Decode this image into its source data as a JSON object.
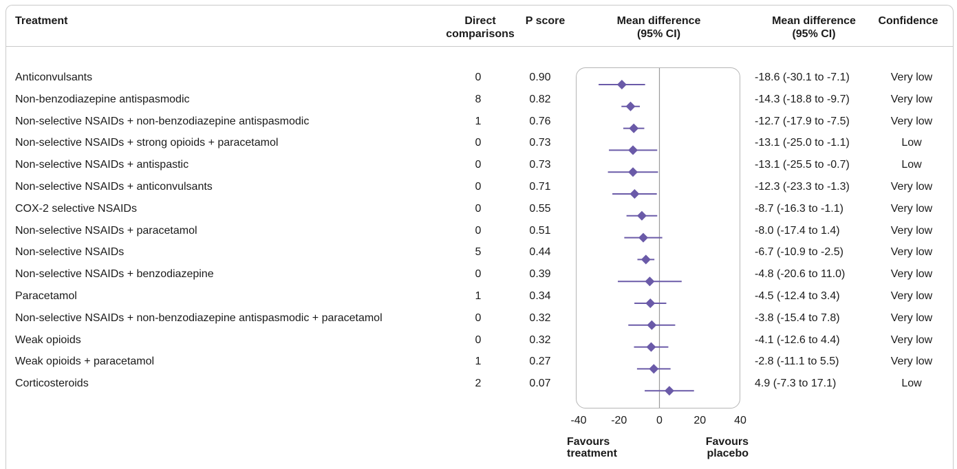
{
  "headers": {
    "treatment": "Treatment",
    "direct_1": "Direct",
    "direct_2": "comparisons",
    "pscore": "P score",
    "md_plot_1": "Mean difference",
    "md_plot_2": "(95% CI)",
    "md_text_1": "Mean difference",
    "md_text_2": "(95% CI)",
    "confidence": "Confidence"
  },
  "rows": [
    {
      "treatment": "Anticonvulsants",
      "direct": "0",
      "pscore": "0.90",
      "ci_text": "-18.6 (-30.1 to -7.1)",
      "confidence": "Very low"
    },
    {
      "treatment": "Non-benzodiazepine antispasmodic",
      "direct": "8",
      "pscore": "0.82",
      "ci_text": "-14.3 (-18.8 to -9.7)",
      "confidence": "Very low"
    },
    {
      "treatment": "Non-selective NSAIDs + non-benzodiazepine antispasmodic",
      "direct": "1",
      "pscore": "0.76",
      "ci_text": "-12.7 (-17.9 to -7.5)",
      "confidence": "Very low"
    },
    {
      "treatment": "Non-selective NSAIDs + strong opioids + paracetamol",
      "direct": "0",
      "pscore": "0.73",
      "ci_text": "-13.1 (-25.0 to -1.1)",
      "confidence": "Low"
    },
    {
      "treatment": "Non-selective NSAIDs + antispastic",
      "direct": "0",
      "pscore": "0.73",
      "ci_text": "-13.1 (-25.5 to -0.7)",
      "confidence": "Low"
    },
    {
      "treatment": "Non-selective NSAIDs + anticonvulsants",
      "direct": "0",
      "pscore": "0.71",
      "ci_text": "-12.3 (-23.3 to -1.3)",
      "confidence": "Very low"
    },
    {
      "treatment": "COX-2 selective NSAIDs",
      "direct": "0",
      "pscore": "0.55",
      "ci_text": "-8.7 (-16.3 to -1.1)",
      "confidence": "Very low"
    },
    {
      "treatment": "Non-selective NSAIDs + paracetamol",
      "direct": "0",
      "pscore": "0.51",
      "ci_text": "-8.0 (-17.4 to 1.4)",
      "confidence": "Very low"
    },
    {
      "treatment": "Non-selective NSAIDs",
      "direct": "5",
      "pscore": "0.44",
      "ci_text": "-6.7 (-10.9 to -2.5)",
      "confidence": "Very low"
    },
    {
      "treatment": "Non-selective NSAIDs + benzodiazepine",
      "direct": "0",
      "pscore": "0.39",
      "ci_text": "-4.8 (-20.6 to 11.0)",
      "confidence": "Very low"
    },
    {
      "treatment": "Paracetamol",
      "direct": "1",
      "pscore": "0.34",
      "ci_text": "-4.5 (-12.4 to 3.4)",
      "confidence": "Very low"
    },
    {
      "treatment": "Non-selective NSAIDs + non-benzodiazepine antispasmodic + paracetamol",
      "direct": "0",
      "pscore": "0.32",
      "ci_text": "-3.8 (-15.4 to 7.8)",
      "confidence": "Very low"
    },
    {
      "treatment": "Weak opioids",
      "direct": "0",
      "pscore": "0.32",
      "ci_text": "-4.1 (-12.6 to 4.4)",
      "confidence": "Very low"
    },
    {
      "treatment": "Weak opioids + paracetamol",
      "direct": "1",
      "pscore": "0.27",
      "ci_text": "-2.8 (-11.1 to 5.5)",
      "confidence": "Very low"
    },
    {
      "treatment": "Corticosteroids",
      "direct": "2",
      "pscore": "0.07",
      "ci_text": "4.9 (-7.3 to 17.1)",
      "confidence": "Low"
    }
  ],
  "favours": {
    "left_1": "Favours",
    "left_2": "treatment",
    "right_1": "Favours",
    "right_2": "placebo"
  },
  "chart_data": {
    "type": "forest",
    "xlim": [
      -40,
      40
    ],
    "xticks": [
      -40,
      -20,
      0,
      20,
      40
    ],
    "reference_line": 0,
    "marker_color": "#6a5aa8",
    "categories": [
      "Anticonvulsants",
      "Non-benzodiazepine antispasmodic",
      "Non-selective NSAIDs + non-benzodiazepine antispasmodic",
      "Non-selective NSAIDs + strong opioids + paracetamol",
      "Non-selective NSAIDs + antispastic",
      "Non-selective NSAIDs + anticonvulsants",
      "COX-2 selective NSAIDs",
      "Non-selective NSAIDs + paracetamol",
      "Non-selective NSAIDs",
      "Non-selective NSAIDs + benzodiazepine",
      "Paracetamol",
      "Non-selective NSAIDs + non-benzodiazepine antispasmodic + paracetamol",
      "Weak opioids",
      "Weak opioids + paracetamol",
      "Corticosteroids"
    ],
    "estimate": [
      -18.6,
      -14.3,
      -12.7,
      -13.1,
      -13.1,
      -12.3,
      -8.7,
      -8.0,
      -6.7,
      -4.8,
      -4.5,
      -3.8,
      -4.1,
      -2.8,
      4.9
    ],
    "ci_low": [
      -30.1,
      -18.8,
      -17.9,
      -25.0,
      -25.5,
      -23.3,
      -16.3,
      -17.4,
      -10.9,
      -20.6,
      -12.4,
      -15.4,
      -12.6,
      -11.1,
      -7.3
    ],
    "ci_high": [
      -7.1,
      -9.7,
      -7.5,
      -1.1,
      -0.7,
      -1.3,
      -1.1,
      1.4,
      -2.5,
      11.0,
      3.4,
      7.8,
      4.4,
      5.5,
      17.1
    ]
  }
}
